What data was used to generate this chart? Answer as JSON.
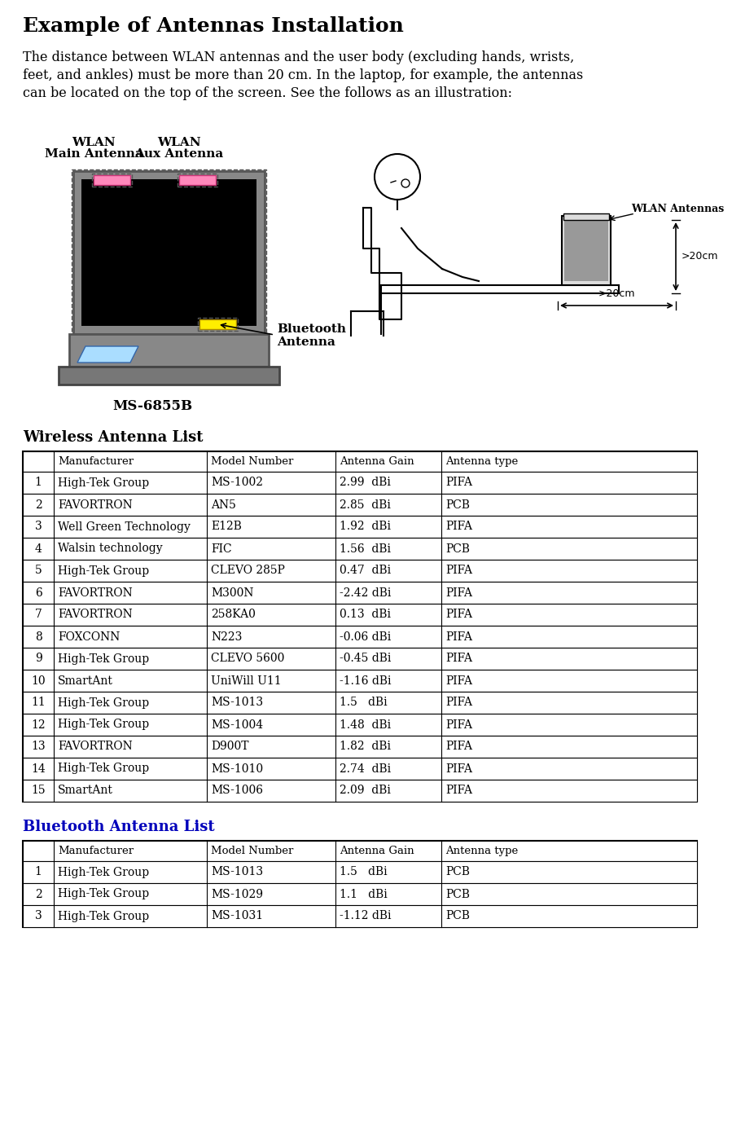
{
  "title": "Example of Antennas Installation",
  "body_lines": [
    "The distance between WLAN antennas and the user body (excluding hands, wrists,",
    "feet, and ankles) must be more than 20 cm. In the laptop, for example, the antennas",
    "can be located on the top of the screen. See the follows as an illustration:"
  ],
  "wireless_title": "Wireless Antenna List",
  "bluetooth_title": "Bluetooth Antenna List",
  "wireless_headers": [
    "",
    "Manufacturer",
    "Model Number",
    "Antenna Gain",
    "Antenna type"
  ],
  "wireless_data": [
    [
      "1",
      "High-Tek Group",
      "MS-1002",
      "2.99  dBi",
      "PIFA"
    ],
    [
      "2",
      "FAVORTRON",
      "AN5",
      "2.85  dBi",
      "PCB"
    ],
    [
      "3",
      "Well Green Technology",
      "E12B",
      "1.92  dBi",
      "PIFA"
    ],
    [
      "4",
      "Walsin technology",
      "FIC",
      "1.56  dBi",
      "PCB"
    ],
    [
      "5",
      "High-Tek Group",
      "CLEVO 285P",
      "0.47  dBi",
      "PIFA"
    ],
    [
      "6",
      "FAVORTRON",
      "M300N",
      "-2.42 dBi",
      "PIFA"
    ],
    [
      "7",
      "FAVORTRON",
      "258KA0",
      "0.13  dBi",
      "PIFA"
    ],
    [
      "8",
      "FOXCONN",
      "N223",
      "-0.06 dBi",
      "PIFA"
    ],
    [
      "9",
      "High-Tek Group",
      "CLEVO 5600",
      "-0.45 dBi",
      "PIFA"
    ],
    [
      "10",
      "SmartAnt",
      "UniWill U11",
      "-1.16 dBi",
      "PIFA"
    ],
    [
      "11",
      "High-Tek Group",
      "MS-1013",
      "1.5   dBi",
      "PIFA"
    ],
    [
      "12",
      "High-Tek Group",
      "MS-1004",
      "1.48  dBi",
      "PIFA"
    ],
    [
      "13",
      "FAVORTRON",
      "D900T",
      "1.82  dBi",
      "PIFA"
    ],
    [
      "14",
      "High-Tek Group",
      "MS-1010",
      "2.74  dBi",
      "PIFA"
    ],
    [
      "15",
      "SmartAnt",
      "MS-1006",
      "2.09  dBi",
      "PIFA"
    ]
  ],
  "bluetooth_headers": [
    "",
    "Manufacturer",
    "Model Number",
    "Antenna Gain",
    "Antenna type"
  ],
  "bluetooth_data": [
    [
      "1",
      "High-Tek Group",
      "MS-1013",
      "1.5   dBi",
      "PCB"
    ],
    [
      "2",
      "High-Tek Group",
      "MS-1029",
      "1.1   dBi",
      "PCB"
    ],
    [
      "3",
      "High-Tek Group",
      "MS-1031",
      "-1.12 dBi",
      "PCB"
    ]
  ],
  "model_label": "MS-6855B",
  "wlan_antennas_label": "WLAN Antennas",
  "distance_h_label": ">20cm",
  "distance_v_label": ">20cm",
  "bg_color": "#ffffff",
  "text_color": "#000000",
  "wireless_title_color": "#000000",
  "bluetooth_title_color": "#0000bb",
  "laptop_frame_color": "#888888",
  "laptop_screen_color": "#111111",
  "antenna_pink_color": "#ff88bb",
  "antenna_yellow_color": "#ffee00",
  "touchpad_color": "#aaddff",
  "col_props": [
    38,
    188,
    158,
    130,
    314
  ]
}
